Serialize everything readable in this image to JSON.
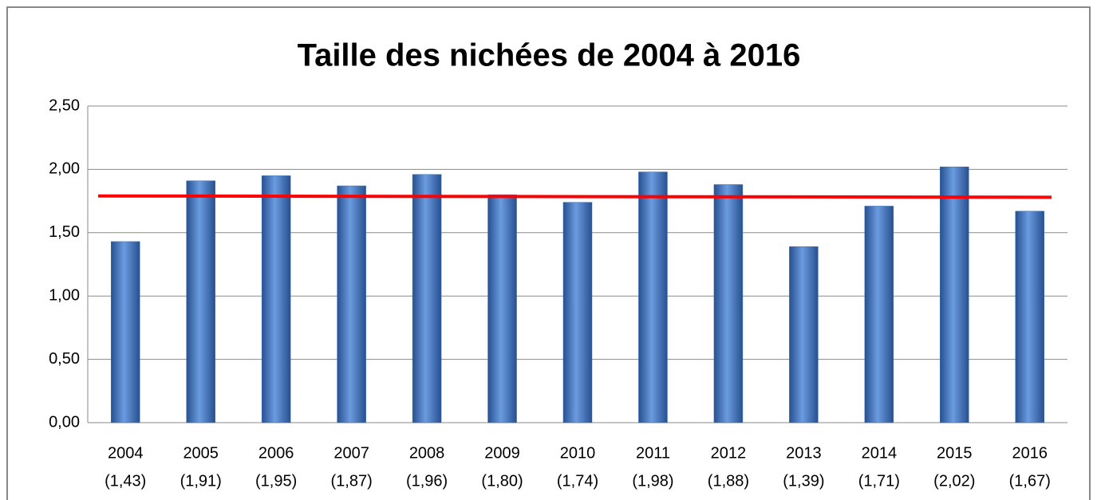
{
  "chart_data": {
    "type": "bar",
    "title": "Taille des nichées de 2004 à 2016",
    "categories": [
      "2004",
      "2005",
      "2006",
      "2007",
      "2008",
      "2009",
      "2010",
      "2011",
      "2012",
      "2013",
      "2014",
      "2015",
      "2016"
    ],
    "values": [
      1.43,
      1.91,
      1.95,
      1.87,
      1.96,
      1.8,
      1.74,
      1.98,
      1.88,
      1.39,
      1.71,
      2.02,
      1.67
    ],
    "value_labels": [
      "(1,43)",
      "(1,91)",
      "(1,95)",
      "(1,87)",
      "(1,96)",
      "(1,80)",
      "(1,74)",
      "(1,98)",
      "(1,88)",
      "(1,39)",
      "(1,71)",
      "(2,02)",
      "(1,67)"
    ],
    "color": "#3d6fb8",
    "mean_line": {
      "values": [
        1.79,
        1.78
      ],
      "color": "#ff0000"
    },
    "ylim": [
      0,
      2.5
    ],
    "yticks": [
      {
        "value": 0,
        "label": "0,00"
      },
      {
        "value": 0.5,
        "label": "0,50"
      },
      {
        "value": 1,
        "label": "1,00"
      },
      {
        "value": 1.5,
        "label": "1,50"
      },
      {
        "value": 2,
        "label": "2,00"
      },
      {
        "value": 2.5,
        "label": "2,50"
      }
    ],
    "grid": true
  }
}
